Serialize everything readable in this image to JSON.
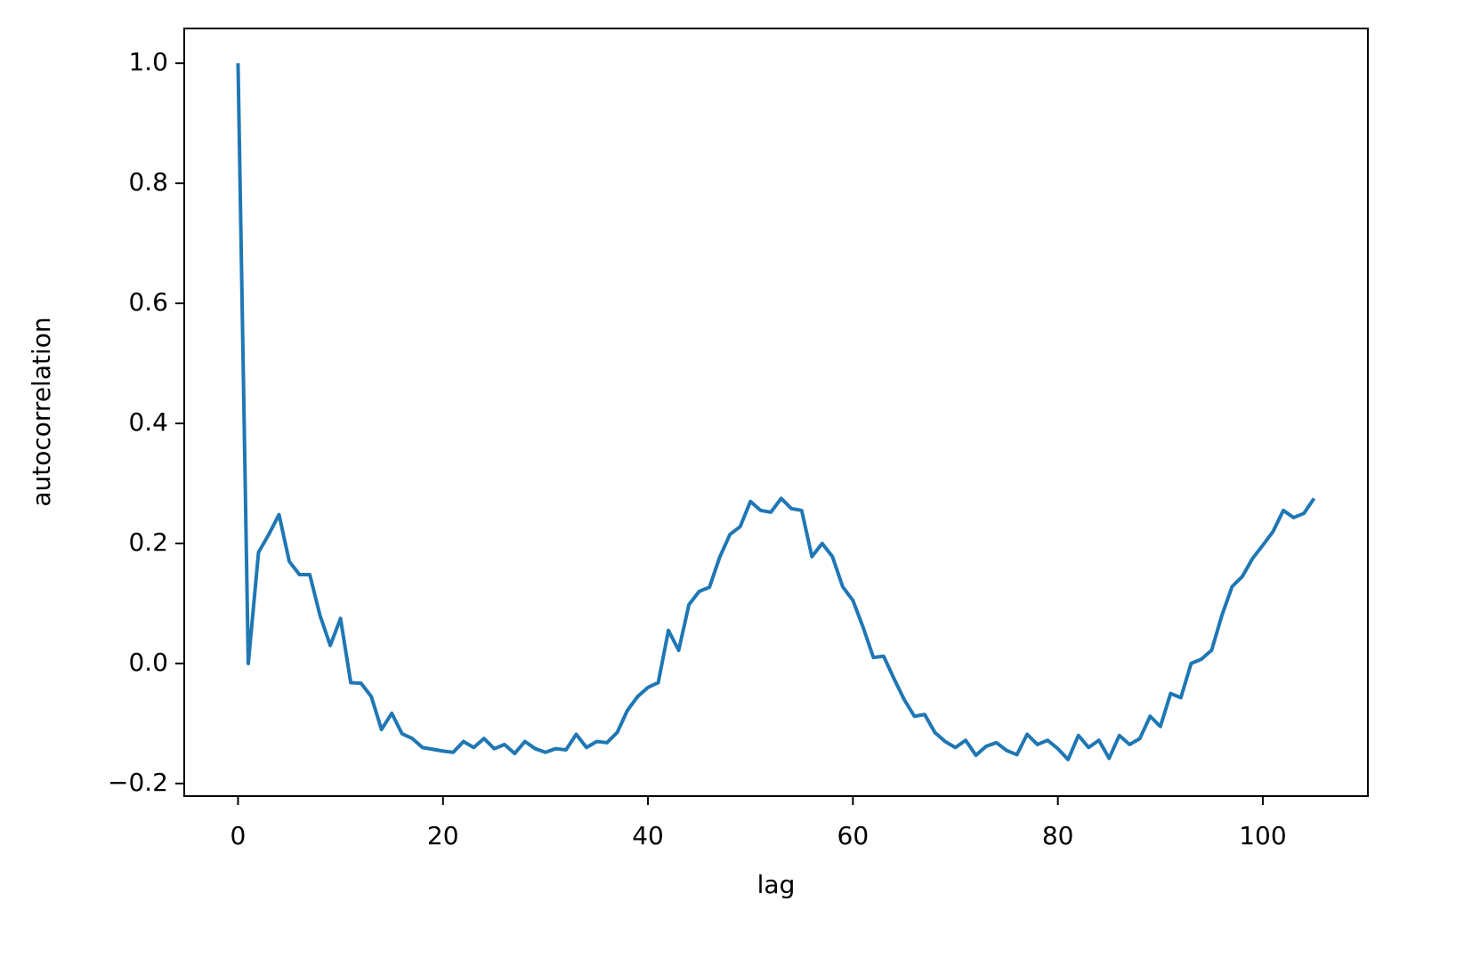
{
  "chart_data": {
    "type": "line",
    "x_label": "lag",
    "y_label": "autocorrelation",
    "x": [
      0,
      1,
      2,
      3,
      4,
      5,
      6,
      7,
      8,
      9,
      10,
      11,
      12,
      13,
      14,
      15,
      16,
      17,
      18,
      19,
      20,
      21,
      22,
      23,
      24,
      25,
      26,
      27,
      28,
      29,
      30,
      31,
      32,
      33,
      34,
      35,
      36,
      37,
      38,
      39,
      40,
      41,
      42,
      43,
      44,
      45,
      46,
      47,
      48,
      49,
      50,
      51,
      52,
      53,
      54,
      55,
      56,
      57,
      58,
      59,
      60,
      61,
      62,
      63,
      64,
      65,
      66,
      67,
      68,
      69,
      70,
      71,
      72,
      73,
      74,
      75,
      76,
      77,
      78,
      79,
      80,
      81,
      82,
      83,
      84,
      85,
      86,
      87,
      88,
      89,
      90,
      91,
      92,
      93,
      94,
      95,
      96,
      97,
      98,
      99,
      100,
      101,
      102,
      103,
      104,
      105
    ],
    "series": [
      {
        "color": "#1f77b4",
        "values": [
          1.0,
          0.0,
          0.185,
          0.215,
          0.248,
          0.17,
          0.148,
          0.148,
          0.08,
          0.03,
          0.075,
          -0.032,
          -0.033,
          -0.055,
          -0.11,
          -0.083,
          -0.117,
          -0.125,
          -0.14,
          -0.143,
          -0.146,
          -0.148,
          -0.13,
          -0.14,
          -0.125,
          -0.142,
          -0.135,
          -0.15,
          -0.13,
          -0.142,
          -0.148,
          -0.142,
          -0.144,
          -0.118,
          -0.14,
          -0.13,
          -0.132,
          -0.115,
          -0.078,
          -0.055,
          -0.04,
          -0.032,
          0.055,
          0.022,
          0.098,
          0.12,
          0.127,
          0.177,
          0.215,
          0.228,
          0.27,
          0.255,
          0.252,
          0.275,
          0.258,
          0.255,
          0.178,
          0.2,
          0.178,
          0.128,
          0.105,
          0.06,
          0.01,
          0.012,
          -0.025,
          -0.06,
          -0.088,
          -0.085,
          -0.115,
          -0.13,
          -0.14,
          -0.128,
          -0.153,
          -0.138,
          -0.132,
          -0.145,
          -0.152,
          -0.118,
          -0.135,
          -0.128,
          -0.142,
          -0.16,
          -0.12,
          -0.14,
          -0.128,
          -0.158,
          -0.12,
          -0.135,
          -0.125,
          -0.088,
          -0.105,
          -0.05,
          -0.057,
          0.0,
          0.007,
          0.022,
          0.08,
          0.128,
          0.145,
          0.175,
          0.197,
          0.22,
          0.255,
          0.243,
          0.25,
          0.275
        ]
      }
    ],
    "xlim": [
      -5.25,
      110.25
    ],
    "xticks": [
      0,
      20,
      40,
      60,
      80,
      100
    ],
    "ylim": [
      -0.221,
      1.058
    ],
    "yticks": [
      {
        "value": -0.2,
        "label": "−0.2"
      },
      {
        "value": 0,
        "label": "0.0"
      },
      0.2,
      0.4,
      0.6,
      0.8,
      {
        "value": 1,
        "label": "1.0"
      }
    ],
    "grid": false
  }
}
